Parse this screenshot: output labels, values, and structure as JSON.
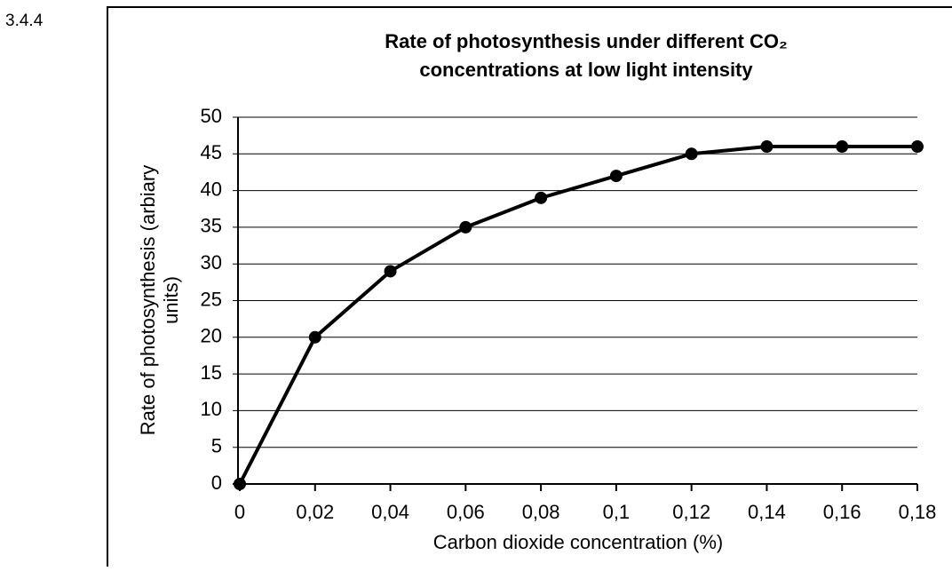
{
  "question_number": "3.4.4",
  "chart_data": {
    "type": "line",
    "title": [
      "Rate of photosynthesis under different CO₂",
      "concentrations at low light intensity"
    ],
    "x_label": "Carbon dioxide concentration (%)",
    "y_label": [
      "Rate of photosynthesis (arbiary",
      "units)"
    ],
    "categories": [
      "0",
      "0,02",
      "0,04",
      "0,06",
      "0,08",
      "0,1",
      "0,12",
      "0,14",
      "0,16",
      "0,18"
    ],
    "series": [
      {
        "name": "Rate of photosynthesis",
        "color": "#000000",
        "values": [
          0,
          20,
          29,
          35,
          39,
          42,
          45,
          46,
          46,
          46
        ]
      }
    ],
    "ylim": [
      0,
      50
    ],
    "yticks": [
      0,
      5,
      10,
      15,
      20,
      25,
      30,
      35,
      40,
      45,
      50
    ],
    "grid": true,
    "legend": false
  }
}
